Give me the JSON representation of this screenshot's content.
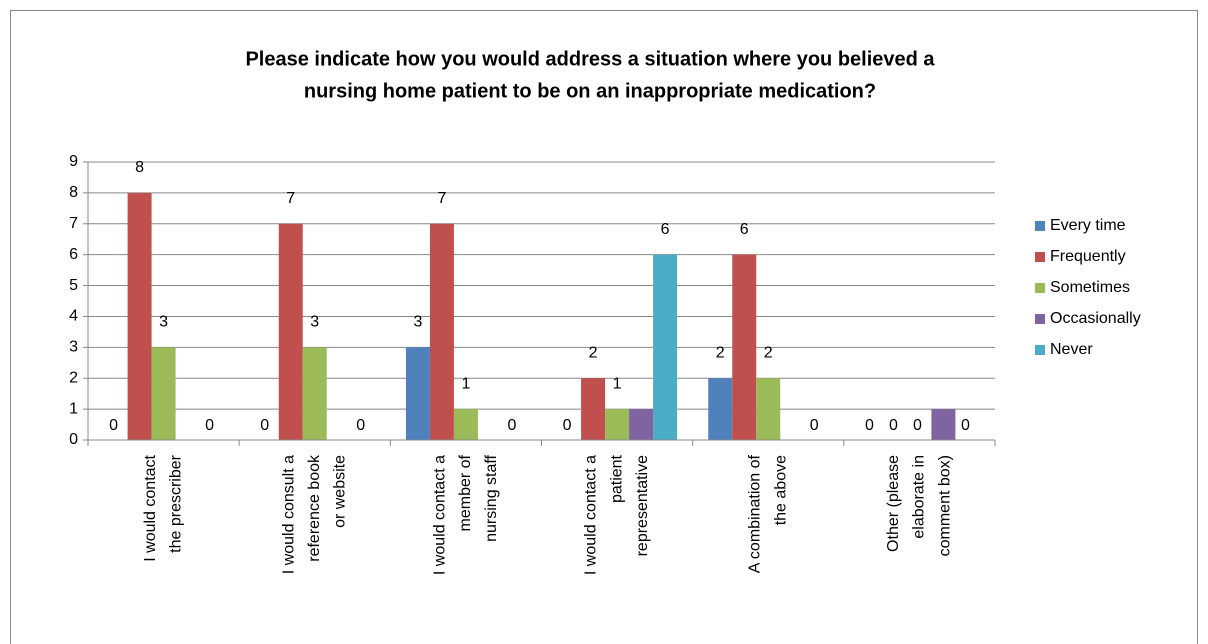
{
  "chart_data": {
    "type": "bar",
    "title": [
      "Please indicate how you would address a situation where you believed a",
      "nursing home patient to be on an inappropriate medication?"
    ],
    "categories": [
      [
        "I would contact",
        "the prescriber"
      ],
      [
        "I would consult a",
        "reference book",
        "or website"
      ],
      [
        "I would contact a",
        "member of",
        "nursing staff"
      ],
      [
        "I would contact a",
        "patient",
        "representative"
      ],
      [
        "A combination of",
        "the above"
      ],
      [
        "Other (please",
        "elaborate in",
        "comment box)"
      ]
    ],
    "series": [
      {
        "name": "Every time",
        "color": "#4f81bd",
        "values": [
          0,
          0,
          3,
          0,
          2,
          0
        ],
        "data_labels": true
      },
      {
        "name": "Frequently",
        "color": "#c0504d",
        "values": [
          8,
          7,
          7,
          2,
          6,
          0
        ],
        "data_labels": true
      },
      {
        "name": "Sometimes",
        "color": "#9bbb59",
        "values": [
          3,
          3,
          1,
          1,
          2,
          0
        ],
        "data_labels": true
      },
      {
        "name": "Occasionally",
        "color": "#8064a2",
        "values": [
          null,
          null,
          null,
          1,
          null,
          1
        ],
        "data_labels": false
      },
      {
        "name": "Never",
        "color": "#4bacc6",
        "values": [
          0,
          0,
          0,
          6,
          0,
          0
        ],
        "data_labels": true
      }
    ],
    "ylim": [
      0,
      9
    ],
    "yticks": [
      0,
      1,
      2,
      3,
      4,
      5,
      6,
      7,
      8,
      9
    ],
    "grid": true,
    "legend": "right"
  }
}
